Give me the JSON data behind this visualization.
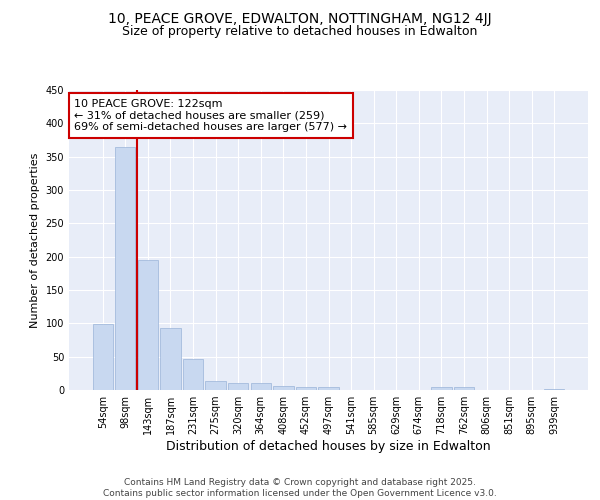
{
  "title_line1": "10, PEACE GROVE, EDWALTON, NOTTINGHAM, NG12 4JJ",
  "title_line2": "Size of property relative to detached houses in Edwalton",
  "xlabel": "Distribution of detached houses by size in Edwalton",
  "ylabel": "Number of detached properties",
  "categories": [
    "54sqm",
    "98sqm",
    "143sqm",
    "187sqm",
    "231sqm",
    "275sqm",
    "320sqm",
    "364sqm",
    "408sqm",
    "452sqm",
    "497sqm",
    "541sqm",
    "585sqm",
    "629sqm",
    "674sqm",
    "718sqm",
    "762sqm",
    "806sqm",
    "851sqm",
    "895sqm",
    "939sqm"
  ],
  "values": [
    99,
    365,
    195,
    93,
    46,
    14,
    10,
    10,
    6,
    5,
    5,
    0,
    0,
    0,
    0,
    5,
    4,
    0,
    0,
    0,
    2
  ],
  "bar_color": "#c8d8f0",
  "bar_edge_color": "#9ab4d8",
  "vline_x": 1.5,
  "vline_color": "#cc0000",
  "annotation_text": "10 PEACE GROVE: 122sqm\n← 31% of detached houses are smaller (259)\n69% of semi-detached houses are larger (577) →",
  "annotation_box_color": "#ffffff",
  "annotation_box_edge": "#cc0000",
  "ylim": [
    0,
    450
  ],
  "yticks": [
    0,
    50,
    100,
    150,
    200,
    250,
    300,
    350,
    400,
    450
  ],
  "background_color": "#ffffff",
  "plot_bg_color": "#e8edf8",
  "footer_text": "Contains HM Land Registry data © Crown copyright and database right 2025.\nContains public sector information licensed under the Open Government Licence v3.0.",
  "title_fontsize": 10,
  "subtitle_fontsize": 9,
  "tick_fontsize": 7,
  "xlabel_fontsize": 9,
  "ylabel_fontsize": 8,
  "annotation_fontsize": 8,
  "footer_fontsize": 6.5
}
